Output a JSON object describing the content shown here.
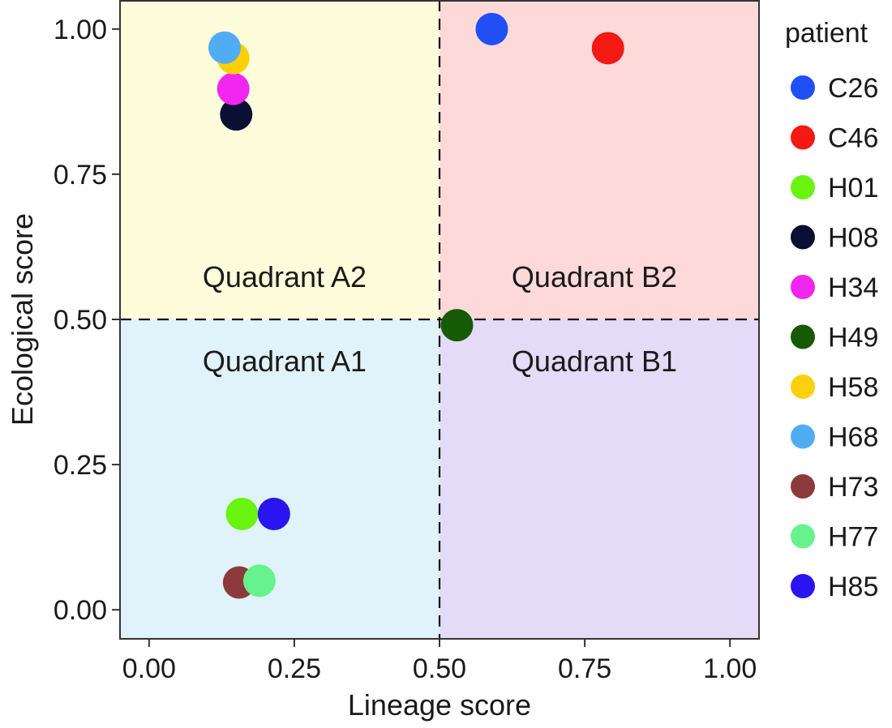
{
  "chart_data": {
    "type": "scatter",
    "xlabel": "Lineage score",
    "ylabel": "Ecological score",
    "xlim": [
      -0.05,
      1.05
    ],
    "ylim": [
      -0.05,
      1.05
    ],
    "x_ticks": [
      0,
      0.25,
      0.5,
      0.75,
      1
    ],
    "y_ticks": [
      0,
      0.25,
      0.5,
      0.75,
      1
    ],
    "x_tick_labels": [
      "0.00",
      "0.25",
      "0.50",
      "0.75",
      "1.00"
    ],
    "y_tick_labels": [
      "0.00",
      "0.25",
      "0.50",
      "0.75",
      "1.00"
    ],
    "threshold_x": 0.5,
    "threshold_y": 0.5,
    "grid": false,
    "quadrants": [
      {
        "label": "Quadrant A2",
        "x_range": [
          -0.05,
          0.5
        ],
        "y_range": [
          0.5,
          1.05
        ],
        "color": "#fdfddb"
      },
      {
        "label": "Quadrant B2",
        "x_range": [
          0.5,
          1.05
        ],
        "y_range": [
          0.5,
          1.05
        ],
        "color": "#fdd9da"
      },
      {
        "label": "Quadrant A1",
        "x_range": [
          -0.05,
          0.5
        ],
        "y_range": [
          -0.05,
          0.5
        ],
        "color": "#e1f3fa"
      },
      {
        "label": "Quadrant B1",
        "x_range": [
          0.5,
          1.05
        ],
        "y_range": [
          -0.05,
          0.5
        ],
        "color": "#e4dbf8"
      }
    ],
    "legend_title": "patient",
    "legend_position": "right",
    "series": [
      {
        "name": "C26",
        "color": "#1f4ff5",
        "points": [
          {
            "x": 0.59,
            "y": 1.0
          }
        ]
      },
      {
        "name": "C46",
        "color": "#f41913",
        "points": [
          {
            "x": 0.79,
            "y": 0.967
          }
        ]
      },
      {
        "name": "H01",
        "color": "#6af30e",
        "points": [
          {
            "x": 0.16,
            "y": 0.165
          }
        ]
      },
      {
        "name": "H08",
        "color": "#0a0f33",
        "points": [
          {
            "x": 0.15,
            "y": 0.853
          }
        ]
      },
      {
        "name": "H34",
        "color": "#f026ee",
        "points": [
          {
            "x": 0.145,
            "y": 0.897
          }
        ]
      },
      {
        "name": "H49",
        "color": "#165a06",
        "points": [
          {
            "x": 0.53,
            "y": 0.49
          }
        ]
      },
      {
        "name": "H58",
        "color": "#fdd00c",
        "points": [
          {
            "x": 0.145,
            "y": 0.95
          }
        ]
      },
      {
        "name": "H68",
        "color": "#52acf3",
        "points": [
          {
            "x": 0.13,
            "y": 0.968
          }
        ]
      },
      {
        "name": "H73",
        "color": "#8c3a3b",
        "points": [
          {
            "x": 0.155,
            "y": 0.047
          }
        ]
      },
      {
        "name": "H77",
        "color": "#66f28c",
        "points": [
          {
            "x": 0.19,
            "y": 0.05
          }
        ]
      },
      {
        "name": "H85",
        "color": "#2a14f0",
        "points": [
          {
            "x": 0.215,
            "y": 0.165
          }
        ]
      }
    ]
  }
}
